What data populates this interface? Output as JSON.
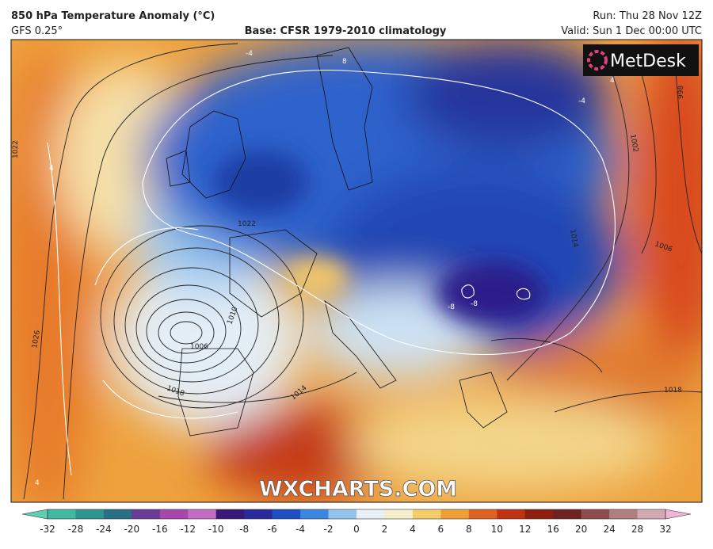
{
  "header": {
    "title": "850 hPa Temperature Anomaly (°C)",
    "model": "GFS 0.25°",
    "base": "Base: CFSR 1979-2010 climatology",
    "run": "Run: Thu 28 Nov 12Z",
    "valid": "Valid: Sun 1 Dec 00:00 UTC"
  },
  "logo": "MetDesk",
  "watermark": "WXCHARTS.COM",
  "isobar_labels": [
    "1022",
    "1026",
    "1018",
    "1014",
    "1010",
    "1006",
    "1002",
    "998",
    "1022",
    "1014",
    "1006",
    "1018"
  ],
  "anomaly_labels": [
    "4",
    "4",
    "-4",
    "-4",
    "-8",
    "-8",
    "8",
    "4"
  ],
  "colorbar": {
    "ticks": [
      -32,
      -28,
      -24,
      -20,
      -16,
      -12,
      -10,
      -8,
      -6,
      -4,
      -2,
      0,
      2,
      4,
      6,
      8,
      10,
      12,
      16,
      20,
      24,
      28,
      32
    ],
    "colors": [
      "#3fb8a4",
      "#2c958f",
      "#2a6e88",
      "#6a3a98",
      "#a846ac",
      "#c46cc4",
      "#3a1878",
      "#2a2a9c",
      "#1f4fc4",
      "#3a86e0",
      "#94c4ee",
      "#e8f0f6",
      "#f6eecb",
      "#f4cd6a",
      "#ef9f34",
      "#df6222",
      "#bf3212",
      "#8e1e0e",
      "#6e2222",
      "#8e4c4c",
      "#b07e7e",
      "#d4a8b0"
    ],
    "end_colors": [
      "#5ed0b0",
      "#f0b4d4"
    ]
  }
}
